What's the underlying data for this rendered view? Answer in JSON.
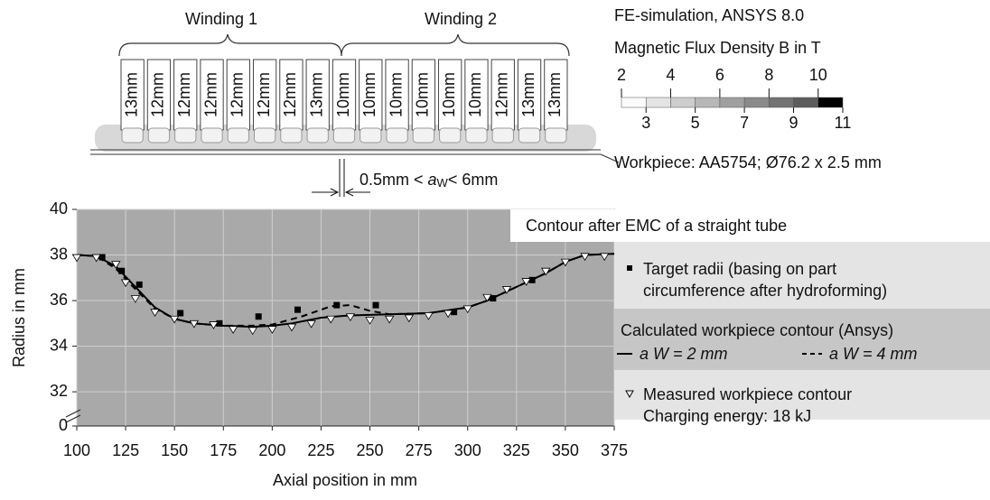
{
  "diagram": {
    "winding_labels": [
      "Winding 1",
      "Winding 2"
    ],
    "turns": [
      "13mm",
      "12mm",
      "12mm",
      "12mm",
      "12mm",
      "12mm",
      "12mm",
      "13mm",
      "10mm",
      "10mm",
      "10mm",
      "10mm",
      "10mm",
      "10mm",
      "12mm",
      "13mm",
      "13mm"
    ],
    "sim_title": "FE-simulation, ANSYS 8.0",
    "colorbar_title": "Magnetic Flux Density B in T",
    "clim": [
      2,
      11
    ],
    "colorbar_ticks_top": [
      2,
      4,
      6,
      8,
      10
    ],
    "colorbar_ticks_bottom": [
      3,
      5,
      7,
      9,
      11
    ],
    "workpiece": "Workpiece: AA5754; Ø76.2 x 2.5 mm",
    "gap_label": [
      "0.5mm < ",
      "a",
      "W",
      "< 6mm"
    ]
  },
  "chart_data": {
    "type": "line",
    "title": "Contour after EMC of a straight tube",
    "xlabel": "Axial position in mm",
    "ylabel": "Radius in mm",
    "xlim": [
      100,
      375
    ],
    "ylim": [
      30.5,
      40
    ],
    "xticks": [
      100,
      125,
      150,
      175,
      200,
      225,
      250,
      275,
      300,
      325,
      350,
      375
    ],
    "yticks": [
      32,
      34,
      36,
      38,
      40
    ],
    "ybreak_tick": 0,
    "grid": true,
    "background": "#a9a9a9",
    "legend_group_title": "Calculated workpiece contour (Ansys)",
    "note": "Charging energy: 18 kJ",
    "series": [
      {
        "name": "Target radii (basing on part circumference after hydroforming)",
        "color": "#000000",
        "marker": "square",
        "x": [
          113,
          123,
          132,
          153,
          173,
          193,
          213,
          233,
          253,
          293,
          313,
          333
        ],
        "values": [
          37.9,
          37.3,
          36.7,
          35.45,
          35.0,
          35.3,
          35.6,
          35.8,
          35.8,
          35.5,
          36.1,
          36.9
        ]
      },
      {
        "name": "a W = 2 mm",
        "color": "#000000",
        "marker": "none",
        "dash": false,
        "x": [
          100,
          110,
          120,
          130,
          140,
          150,
          160,
          175,
          190,
          200,
          210,
          225,
          240,
          260,
          280,
          300,
          310,
          325,
          340,
          350,
          360,
          375
        ],
        "values": [
          38.0,
          37.95,
          37.5,
          36.6,
          35.7,
          35.2,
          35.0,
          34.9,
          34.85,
          34.9,
          35.0,
          35.25,
          35.35,
          35.4,
          35.45,
          35.7,
          36.0,
          36.6,
          37.2,
          37.7,
          38.0,
          38.05
        ]
      },
      {
        "name": "a W = 4 mm",
        "color": "#000000",
        "marker": "none",
        "dash": true,
        "x": [
          100,
          110,
          120,
          130,
          140,
          150,
          160,
          175,
          190,
          200,
          215,
          230,
          240,
          250,
          260,
          280,
          300,
          310,
          325,
          340,
          350,
          360,
          375
        ],
        "values": [
          38.0,
          37.95,
          37.4,
          36.5,
          35.65,
          35.2,
          35.0,
          34.9,
          34.9,
          34.95,
          35.3,
          35.75,
          35.8,
          35.55,
          35.4,
          35.45,
          35.7,
          36.0,
          36.6,
          37.2,
          37.7,
          38.0,
          38.05
        ]
      },
      {
        "name": "Measured workpiece contour",
        "color": "#ffffff",
        "marker": "triangle",
        "x": [
          100,
          110,
          120,
          125,
          130,
          140,
          150,
          160,
          170,
          180,
          190,
          200,
          210,
          220,
          230,
          240,
          250,
          260,
          270,
          280,
          290,
          300,
          310,
          320,
          330,
          340,
          350,
          360,
          370
        ],
        "values": [
          37.9,
          37.9,
          37.6,
          36.8,
          36.1,
          35.5,
          35.2,
          35.0,
          34.95,
          34.75,
          34.7,
          34.75,
          34.85,
          35.0,
          35.2,
          35.3,
          35.15,
          35.2,
          35.25,
          35.35,
          35.45,
          35.65,
          36.15,
          36.5,
          36.85,
          37.3,
          37.7,
          37.95,
          37.95
        ]
      }
    ]
  }
}
